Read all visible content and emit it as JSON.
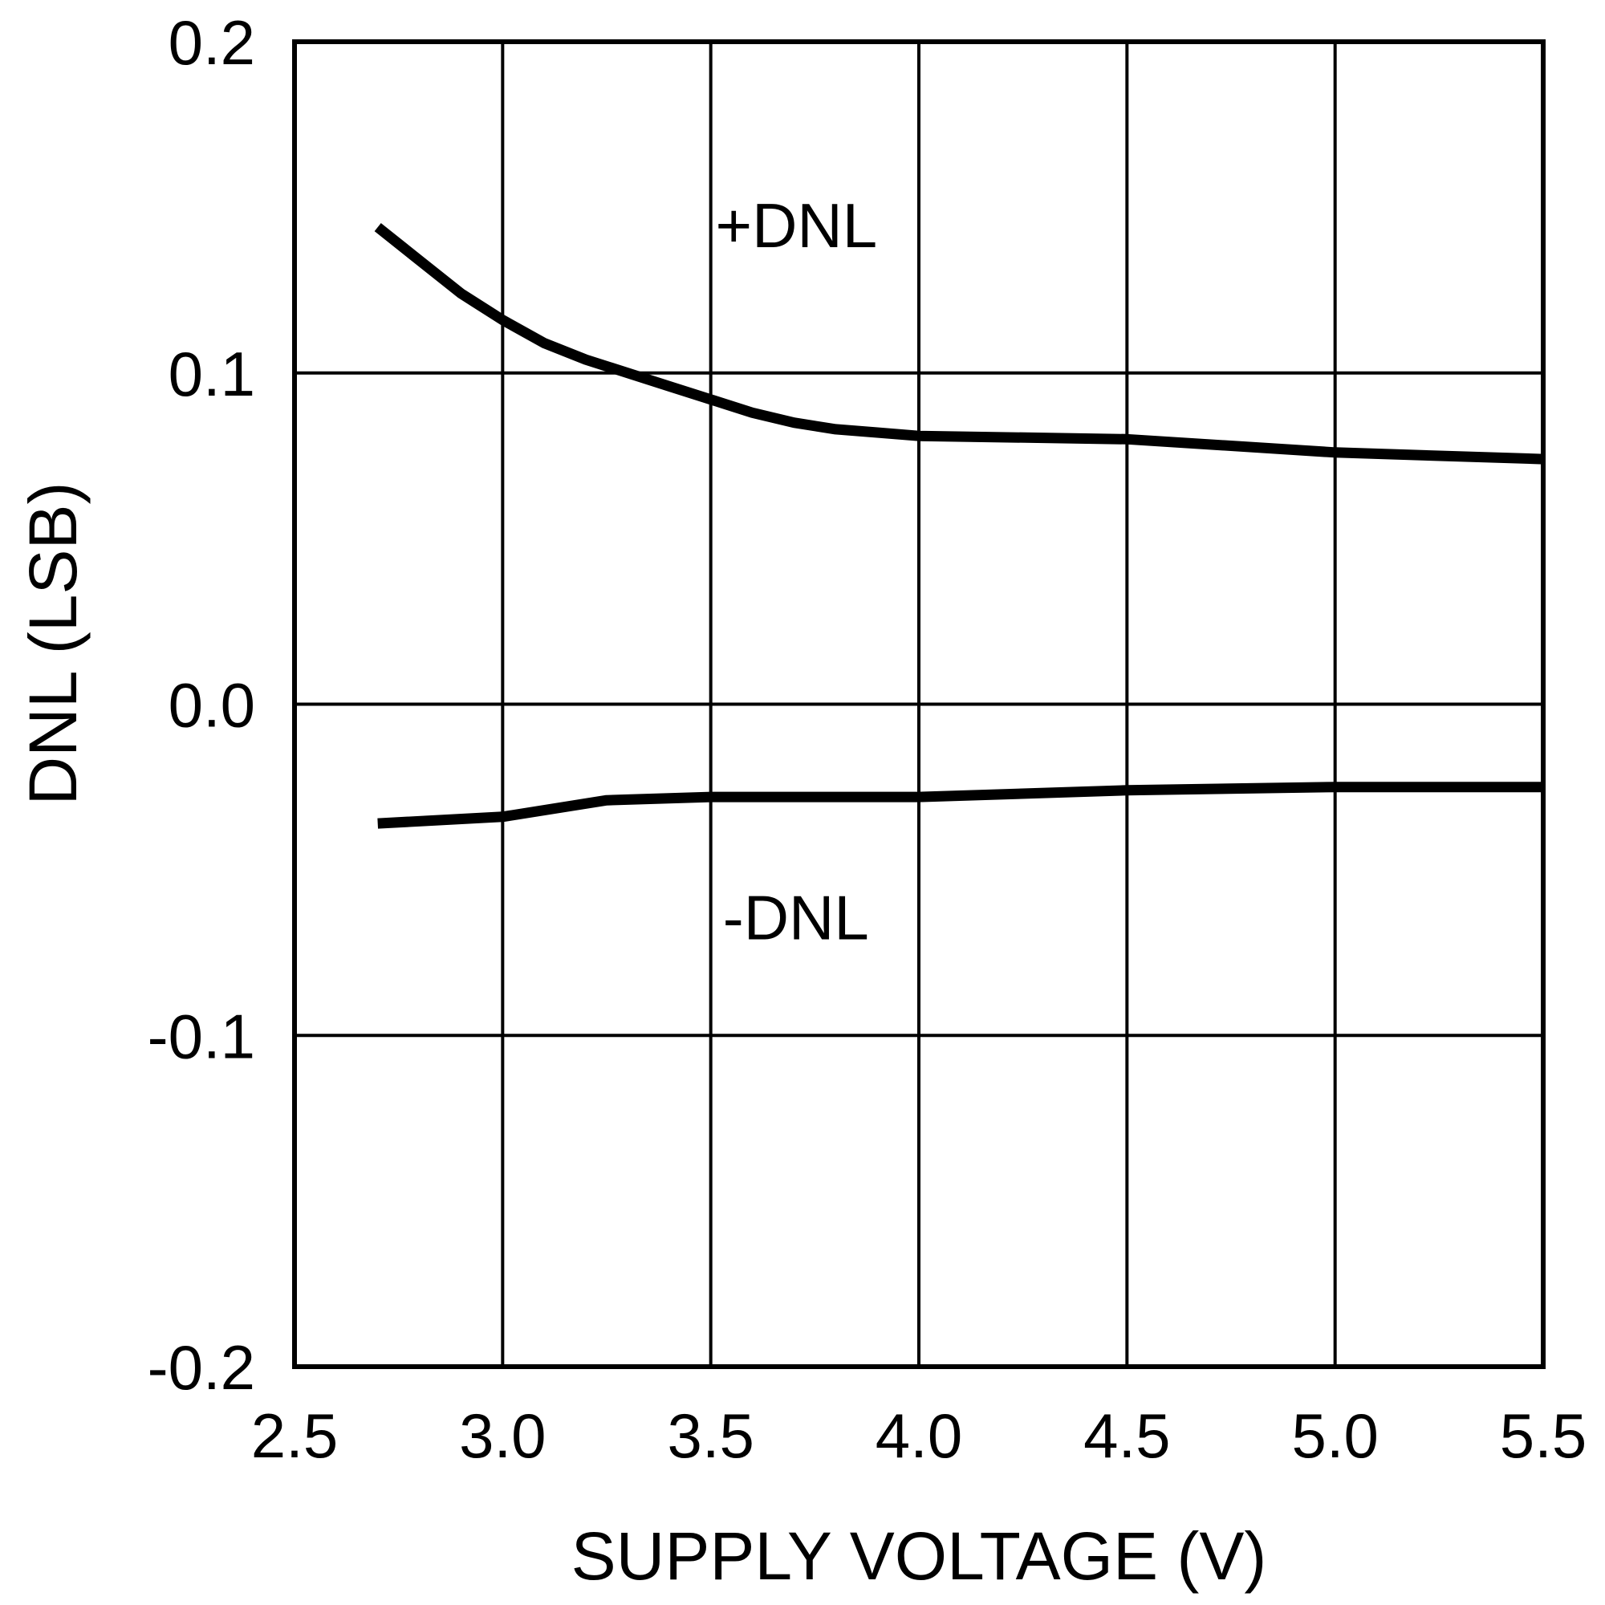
{
  "chart_data": {
    "type": "line",
    "xlabel": "SUPPLY VOLTAGE (V)",
    "ylabel": "DNL (LSB)",
    "xlim": [
      2.5,
      5.5
    ],
    "ylim": [
      -0.2,
      0.2
    ],
    "x_ticks": [
      "2.5",
      "3.0",
      "3.5",
      "4.0",
      "4.5",
      "5.0",
      "5.5"
    ],
    "y_ticks": [
      "0.2",
      "0.1",
      "0.0",
      "-0.1",
      "-0.2"
    ],
    "grid": true,
    "series": [
      {
        "name": "+DNL",
        "x": [
          2.7,
          2.8,
          2.9,
          3.0,
          3.1,
          3.2,
          3.3,
          3.4,
          3.5,
          3.6,
          3.7,
          3.8,
          3.9,
          4.0,
          4.5,
          5.0,
          5.5
        ],
        "y": [
          0.144,
          0.134,
          0.124,
          0.116,
          0.109,
          0.104,
          0.1,
          0.096,
          0.092,
          0.088,
          0.085,
          0.083,
          0.082,
          0.081,
          0.08,
          0.076,
          0.074
        ]
      },
      {
        "name": "-DNL",
        "x": [
          2.7,
          3.0,
          3.25,
          3.5,
          4.0,
          4.5,
          5.0,
          5.5
        ],
        "y": [
          -0.036,
          -0.034,
          -0.029,
          -0.028,
          -0.028,
          -0.026,
          -0.025,
          -0.025
        ]
      }
    ],
    "annotations": [
      {
        "text": "+DNL",
        "x": 3.9,
        "y": 0.138
      },
      {
        "text": "-DNL",
        "x": 3.88,
        "y": -0.071
      }
    ]
  }
}
